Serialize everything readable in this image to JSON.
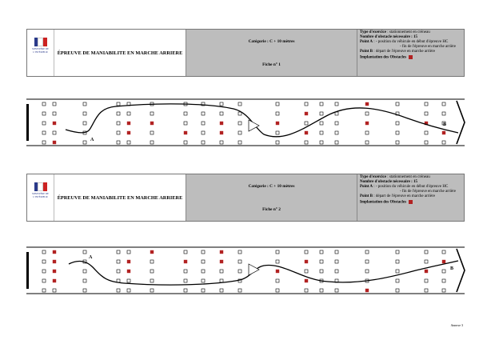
{
  "sheets": [
    {
      "logo_text": "MINISTÈRE DE L'INTÉRIEUR",
      "title": "ÉPREUVE DE MANIABILITE EN MARCHE ARRIERE",
      "category": "Catégorie : C + 10 mètres",
      "sheet_label": "Fiche n° 1",
      "exercise_label": "Type d'exercice",
      "exercise_value": " : stationnement en créneau",
      "obstacles_label": "Nombre d'obstacle nécessaire : 15",
      "point_a_label": "Point A",
      "point_a_value": " : - position du véhicule en début d'épreuve HC",
      "point_a_extra": "- fin de l'épreuve en marche arrière",
      "point_b_label": "Point B",
      "point_b_value": " : départ de l'épreuve en marche arrière",
      "legend_label": "Implantation des Obstacles",
      "marker_a": "A",
      "marker_b": "B"
    },
    {
      "logo_text": "MINISTÈRE DE L'INTÉRIEUR",
      "title": "ÉPREUVE DE MANIABILITE EN MARCHE ARRIERE",
      "category": "Catégorie : C + 10 mètres",
      "sheet_label": "Fiche n° 2",
      "exercise_label": "Type d'exercice",
      "exercise_value": " : stationnement en créneau",
      "obstacles_label": "Nombre d'obstacle nécessaire : 15",
      "point_a_label": "Point A",
      "point_a_value": " : - position du véhicule en début d'épreuve HC",
      "point_a_extra": "- fin de l'épreuve en marche arrière",
      "point_b_label": "Point B",
      "point_b_value": " : départ de l'épreuve en marche arrière",
      "legend_label": "Implantation des Obstacles",
      "marker_a": "A",
      "marker_b": "B"
    }
  ],
  "footer": "Annexe 3",
  "colors": {
    "obstacle_red": "#b22222",
    "header_grey": "#bdbdbd",
    "flag_blue": "#2a3a8a",
    "flag_red": "#cc2222"
  }
}
